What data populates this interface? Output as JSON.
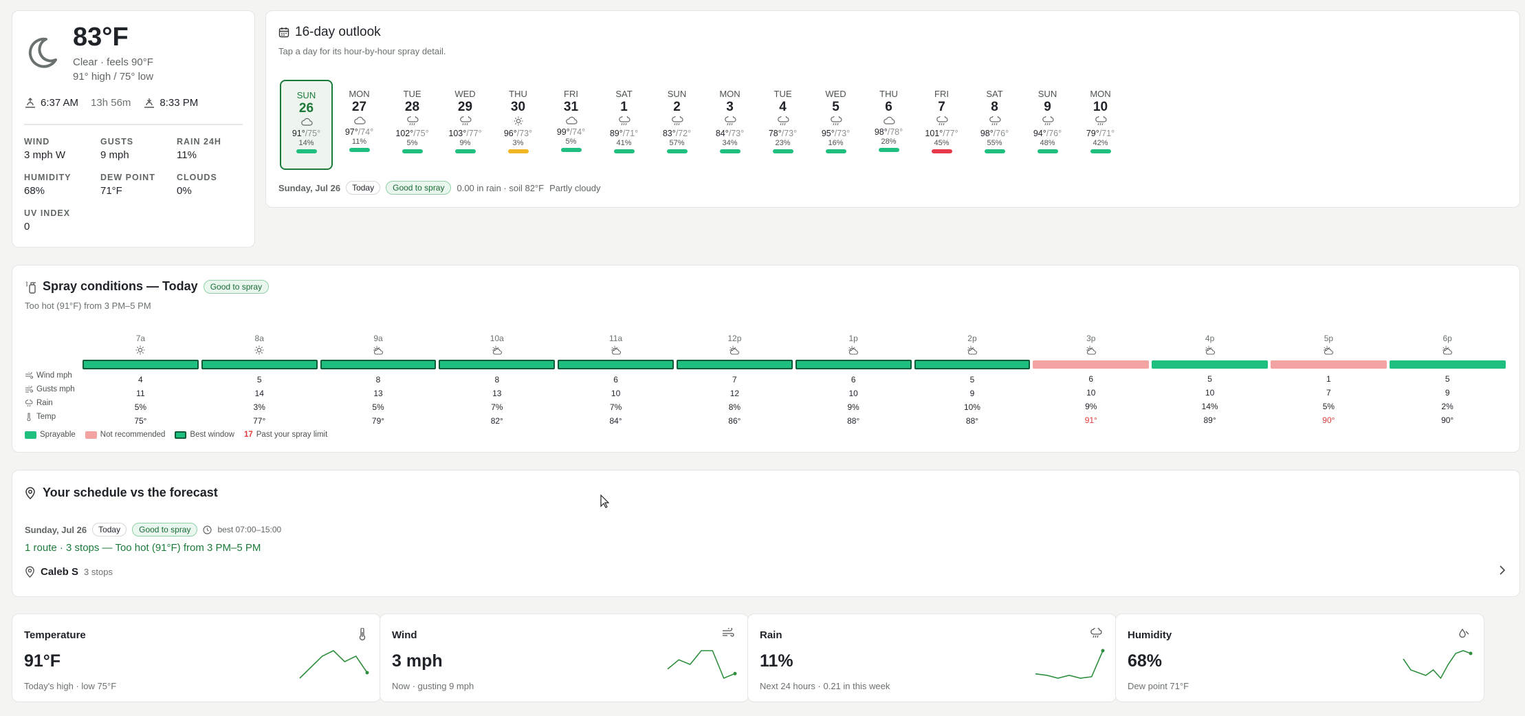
{
  "current": {
    "temp": "83°F",
    "condition": "Clear · feels 90°F",
    "high_low": "91° high / 75° low",
    "sunrise": "6:37 AM",
    "day_length": "13h 56m",
    "sunset": "8:33 PM",
    "stats": [
      {
        "label": "WIND",
        "value": "3 mph W"
      },
      {
        "label": "GUSTS",
        "value": "9 mph"
      },
      {
        "label": "RAIN 24H",
        "value": "11%"
      },
      {
        "label": "HUMIDITY",
        "value": "68%"
      },
      {
        "label": "DEW POINT",
        "value": "71°F"
      },
      {
        "label": "CLOUDS",
        "value": "0%"
      },
      {
        "label": "UV INDEX",
        "value": "0"
      }
    ]
  },
  "outlook": {
    "title": "16-day outlook",
    "subtitle": "Tap a day for its hour-by-hour spray detail.",
    "days": [
      {
        "dow": "SUN",
        "date": "26",
        "icon": "cloud-icon",
        "hi": "91°",
        "lo": "/75°",
        "rain": "14%",
        "status": "good",
        "selected": true
      },
      {
        "dow": "MON",
        "date": "27",
        "icon": "cloud-icon",
        "hi": "97°",
        "lo": "/74°",
        "rain": "11%",
        "status": "good"
      },
      {
        "dow": "TUE",
        "date": "28",
        "icon": "rain-icon",
        "hi": "102°",
        "lo": "/75°",
        "rain": "5%",
        "status": "good"
      },
      {
        "dow": "WED",
        "date": "29",
        "icon": "rain-icon",
        "hi": "103°",
        "lo": "/77°",
        "rain": "9%",
        "status": "good"
      },
      {
        "dow": "THU",
        "date": "30",
        "icon": "sun-icon",
        "hi": "96°",
        "lo": "/73°",
        "rain": "3%",
        "status": "caution"
      },
      {
        "dow": "FRI",
        "date": "31",
        "icon": "cloud-icon",
        "hi": "99°",
        "lo": "/74°",
        "rain": "5%",
        "status": "good"
      },
      {
        "dow": "SAT",
        "date": "1",
        "icon": "rain-icon",
        "hi": "89°",
        "lo": "/71°",
        "rain": "41%",
        "status": "good"
      },
      {
        "dow": "SUN",
        "date": "2",
        "icon": "rain-icon",
        "hi": "83°",
        "lo": "/72°",
        "rain": "57%",
        "status": "good"
      },
      {
        "dow": "MON",
        "date": "3",
        "icon": "rain-icon",
        "hi": "84°",
        "lo": "/73°",
        "rain": "34%",
        "status": "good"
      },
      {
        "dow": "TUE",
        "date": "4",
        "icon": "rain-icon",
        "hi": "78°",
        "lo": "/73°",
        "rain": "23%",
        "status": "good"
      },
      {
        "dow": "WED",
        "date": "5",
        "icon": "rain-icon",
        "hi": "95°",
        "lo": "/73°",
        "rain": "16%",
        "status": "good"
      },
      {
        "dow": "THU",
        "date": "6",
        "icon": "cloud-icon",
        "hi": "98°",
        "lo": "/78°",
        "rain": "28%",
        "status": "good"
      },
      {
        "dow": "FRI",
        "date": "7",
        "icon": "rain-icon",
        "hi": "101°",
        "lo": "/77°",
        "rain": "45%",
        "status": "bad"
      },
      {
        "dow": "SAT",
        "date": "8",
        "icon": "rain-icon",
        "hi": "98°",
        "lo": "/76°",
        "rain": "55%",
        "status": "good"
      },
      {
        "dow": "SUN",
        "date": "9",
        "icon": "rain-icon",
        "hi": "94°",
        "lo": "/76°",
        "rain": "48%",
        "status": "good"
      },
      {
        "dow": "MON",
        "date": "10",
        "icon": "rain-icon",
        "hi": "79°",
        "lo": "/71°",
        "rain": "42%",
        "status": "good"
      }
    ],
    "footer": {
      "date": "Sunday, Jul 26",
      "today": "Today",
      "badge": "Good to spray",
      "details": "0.00 in rain · soil 82°F",
      "sky": "Partly cloudy"
    }
  },
  "spray": {
    "title": "Spray conditions — Today",
    "badge": "Good to spray",
    "subtitle": "Too hot (91°F) from 3 PM–5 PM",
    "row_labels": [
      "Wind mph",
      "Gusts mph",
      "Rain",
      "Temp"
    ],
    "hours": [
      {
        "label": "7a",
        "icon": "sun-icon",
        "status": "best",
        "wind": "4",
        "gust": "11",
        "rain": "5%",
        "temp": "75°",
        "hot": false
      },
      {
        "label": "8a",
        "icon": "sun-icon",
        "status": "best",
        "wind": "5",
        "gust": "14",
        "rain": "3%",
        "temp": "77°",
        "hot": false
      },
      {
        "label": "9a",
        "icon": "partly-cloudy-icon",
        "status": "best",
        "wind": "8",
        "gust": "13",
        "rain": "5%",
        "temp": "79°",
        "hot": false
      },
      {
        "label": "10a",
        "icon": "partly-cloudy-icon",
        "status": "best",
        "wind": "8",
        "gust": "13",
        "rain": "7%",
        "temp": "82°",
        "hot": false
      },
      {
        "label": "11a",
        "icon": "partly-cloudy-icon",
        "status": "best",
        "wind": "6",
        "gust": "10",
        "rain": "7%",
        "temp": "84°",
        "hot": false
      },
      {
        "label": "12p",
        "icon": "partly-cloudy-icon",
        "status": "best",
        "wind": "7",
        "gust": "12",
        "rain": "8%",
        "temp": "86°",
        "hot": false
      },
      {
        "label": "1p",
        "icon": "partly-cloudy-icon",
        "status": "best",
        "wind": "6",
        "gust": "10",
        "rain": "9%",
        "temp": "88°",
        "hot": false
      },
      {
        "label": "2p",
        "icon": "partly-cloudy-icon",
        "status": "best",
        "wind": "5",
        "gust": "9",
        "rain": "10%",
        "temp": "88°",
        "hot": false
      },
      {
        "label": "3p",
        "icon": "partly-cloudy-icon",
        "status": "bad",
        "wind": "6",
        "gust": "10",
        "rain": "9%",
        "temp": "91°",
        "hot": true
      },
      {
        "label": "4p",
        "icon": "partly-cloudy-icon",
        "status": "good",
        "wind": "5",
        "gust": "10",
        "rain": "14%",
        "temp": "89°",
        "hot": false
      },
      {
        "label": "5p",
        "icon": "partly-cloudy-icon",
        "status": "bad",
        "wind": "1",
        "gust": "7",
        "rain": "5%",
        "temp": "90°",
        "hot": true
      },
      {
        "label": "6p",
        "icon": "partly-cloudy-icon",
        "status": "good",
        "wind": "5",
        "gust": "9",
        "rain": "2%",
        "temp": "90°",
        "hot": false
      }
    ],
    "legend": {
      "sprayable": "Sprayable",
      "not_recommended": "Not recommended",
      "best": "Best window",
      "limit_num": "17",
      "limit": "Past your spray limit"
    }
  },
  "schedule": {
    "title": "Your schedule vs the forecast",
    "date": "Sunday, Jul 26",
    "today": "Today",
    "badge": "Good to spray",
    "best": "best 07:00–15:00",
    "summary": "1 route · 3 stops — Too hot (91°F) from 3 PM–5 PM",
    "person": "Caleb S",
    "stops": "3 stops"
  },
  "metrics": [
    {
      "title": "Temperature",
      "value": "91°F",
      "sub": "Today's high · low 75°F",
      "icon": "thermometer-icon",
      "trend": [
        86,
        88,
        90,
        91,
        89,
        90,
        87
      ]
    },
    {
      "title": "Wind",
      "value": "3 mph",
      "sub": "Now · gusting 9 mph",
      "icon": "wind-icon",
      "trend": [
        4,
        5,
        4.5,
        6,
        6,
        3,
        3.5
      ]
    },
    {
      "title": "Rain",
      "value": "11%",
      "sub": "Next 24 hours · 0.21 in this week",
      "icon": "rain-icon",
      "trend": [
        14,
        13,
        11,
        13,
        11,
        12,
        30
      ]
    },
    {
      "title": "Humidity",
      "value": "68%",
      "sub": "Dew point 71°F",
      "icon": "droplet-icon",
      "trend": [
        70,
        66,
        65,
        64,
        66,
        63,
        68,
        72,
        73,
        72
      ]
    }
  ],
  "colors": {
    "good": "#1fbf7f",
    "best_border": "#0f5a37",
    "bad": "#f4a3a3",
    "caution": "#f0b623",
    "danger": "#e8394a",
    "accent": "#1b7a3a"
  }
}
